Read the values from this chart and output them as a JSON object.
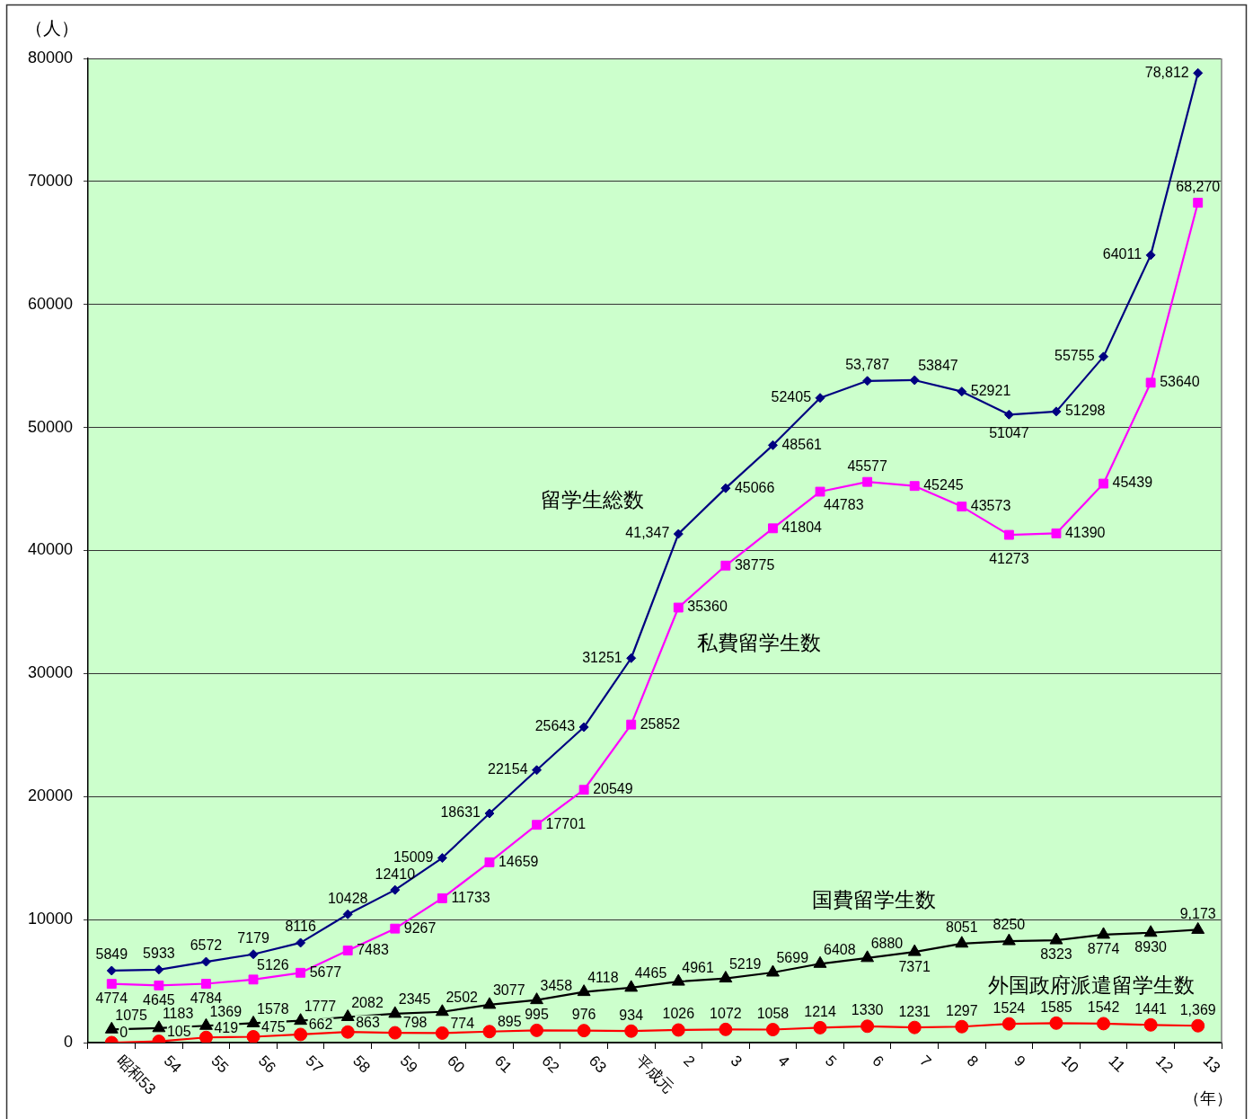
{
  "chart_data": {
    "type": "line",
    "xlabel": "（年）",
    "ylabel": "（人）",
    "categories": [
      "昭和53",
      "54",
      "55",
      "56",
      "57",
      "58",
      "59",
      "60",
      "61",
      "62",
      "63",
      "平成元",
      "2",
      "3",
      "4",
      "5",
      "6",
      "7",
      "8",
      "9",
      "10",
      "11",
      "12",
      "13"
    ],
    "ylim": [
      0,
      80000
    ],
    "yticks": [
      0,
      10000,
      20000,
      30000,
      40000,
      50000,
      60000,
      70000,
      80000
    ],
    "grid": "y",
    "legend": false,
    "line_style": "solid",
    "series": [
      {
        "name": "留学生総数",
        "color": "#000080",
        "marker": "diamond",
        "values": [
          5849,
          5933,
          6572,
          7179,
          8116,
          10428,
          12410,
          15009,
          18631,
          22154,
          25643,
          31251,
          41347,
          45066,
          48561,
          52405,
          53787,
          53847,
          52921,
          51047,
          51298,
          55755,
          64011,
          78812
        ],
        "value_labels": [
          "5849",
          "5933",
          "6572",
          "7179",
          "8116",
          "10428",
          "12410",
          "15009",
          "18631",
          "22154",
          "25643",
          "31251",
          "41,347",
          "45066",
          "48561",
          "52405",
          "53,787",
          "53847",
          "52921",
          "51047",
          "51298",
          "55755",
          "64011",
          "78,812"
        ]
      },
      {
        "name": "私費留学生数",
        "color": "#ff00ff",
        "marker": "square",
        "values": [
          4774,
          4645,
          4784,
          5126,
          5677,
          7483,
          9267,
          11733,
          14659,
          17701,
          20549,
          25852,
          35360,
          38775,
          41804,
          44783,
          45577,
          45245,
          43573,
          41273,
          41390,
          45439,
          53640,
          68270
        ],
        "value_labels": [
          "4774",
          "4645",
          "4784",
          "5126",
          "5677",
          "7483",
          "9267",
          "11733",
          "14659",
          "17701",
          "20549",
          "25852",
          "35360",
          "38775",
          "41804",
          "44783",
          "45577",
          "45245",
          "43573",
          "41273",
          "41390",
          "45439",
          "53640",
          "68,270"
        ]
      },
      {
        "name": "国費留学生数",
        "color": "#000000",
        "marker": "triangle",
        "values": [
          1075,
          1183,
          1369,
          1578,
          1777,
          2082,
          2345,
          2502,
          3077,
          3458,
          4118,
          4465,
          4961,
          5219,
          5699,
          6408,
          6880,
          7371,
          8051,
          8250,
          8323,
          8774,
          8930,
          9173
        ],
        "value_labels": [
          "1075",
          "1183",
          "1369",
          "1578",
          "1777",
          "2082",
          "2345",
          "2502",
          "3077",
          "3458",
          "4118",
          "4465",
          "4961",
          "5219",
          "5699",
          "6408",
          "6880",
          "7371",
          "8051",
          "8250",
          "8323",
          "8774",
          "8930",
          "9,173"
        ]
      },
      {
        "name": "外国政府派遣留学生数",
        "color": "#ff0000",
        "marker": "circle",
        "values": [
          0,
          105,
          419,
          475,
          662,
          863,
          798,
          774,
          895,
          995,
          976,
          934,
          1026,
          1072,
          1058,
          1214,
          1330,
          1231,
          1297,
          1524,
          1585,
          1542,
          1441,
          1369
        ],
        "value_labels": [
          "0",
          "105",
          "419",
          "475",
          "662",
          "863",
          "798",
          "774",
          "895",
          "995",
          "976",
          "934",
          "1026",
          "1072",
          "1058",
          "1214",
          "1330",
          "1231",
          "1297",
          "1524",
          "1585",
          "1542",
          "1441",
          "1,369"
        ]
      }
    ]
  }
}
